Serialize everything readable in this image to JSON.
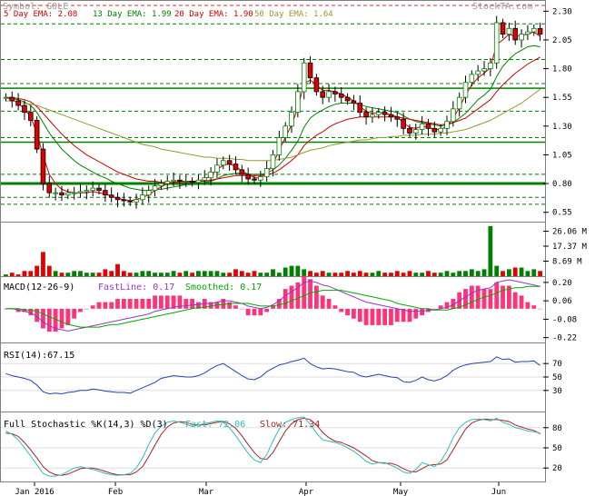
{
  "header": {
    "symbol": "Symbol: GOLE",
    "brand": "StockTA.com",
    "ema5": "5 Day EMA: 2.08",
    "ema13": "13 Day EMA: 1.99",
    "ema20": "20 Day EMA: 1.90",
    "ema50": "50 Day EMA: 1.64"
  },
  "colors": {
    "background": "#ffffff",
    "grid": "#808080",
    "support_line": "#008000",
    "up_candle": "#008000",
    "down_candle": "#e00000",
    "ema5": "#cc0000",
    "ema13": "#008000",
    "ema20": "#cc0000",
    "ema50": "#999933",
    "macd_fast": "#9933cc",
    "macd_slow": "#00aa00",
    "macd_hist": "#ff3377",
    "rsi_line": "#2244aa",
    "stoch_k": "#33bbbb",
    "stoch_d": "#aa2222"
  },
  "chart_data": [
    {
      "id": "price",
      "type": "candlestick",
      "ylim": [
        0.5,
        2.35
      ],
      "yticks": [
        "2.30",
        "2.05",
        "1.80",
        "1.55",
        "1.30",
        "1.05",
        "0.80",
        "0.55"
      ],
      "x": [
        "Jan 2016",
        "Feb",
        "Mar",
        "Apr",
        "May",
        "Jun"
      ],
      "closes": [
        1.55,
        1.52,
        1.48,
        1.42,
        1.35,
        1.1,
        0.8,
        0.72,
        0.72,
        0.7,
        0.72,
        0.72,
        0.73,
        0.74,
        0.76,
        0.74,
        0.7,
        0.68,
        0.66,
        0.65,
        0.64,
        0.66,
        0.7,
        0.74,
        0.78,
        0.8,
        0.82,
        0.83,
        0.82,
        0.82,
        0.81,
        0.83,
        0.85,
        0.9,
        0.96,
        1,
        0.97,
        0.92,
        0.88,
        0.84,
        0.83,
        0.86,
        0.93,
        1.05,
        1.2,
        1.3,
        1.42,
        1.6,
        1.85,
        1.72,
        1.6,
        1.55,
        1.6,
        1.58,
        1.55,
        1.52,
        1.5,
        1.42,
        1.38,
        1.4,
        1.42,
        1.4,
        1.38,
        1.36,
        1.28,
        1.24,
        1.27,
        1.32,
        1.28,
        1.25,
        1.28,
        1.34,
        1.45,
        1.55,
        1.68,
        1.75,
        1.78,
        1.8,
        1.85,
        2.2,
        2.1,
        2.15,
        2.05,
        2.1,
        2.12,
        2.15,
        2.1
      ],
      "support_levels": [
        0.8,
        1.16,
        1.63
      ],
      "resistance_levels": [
        0.62,
        0.68,
        0.88,
        1.2,
        1.43,
        1.67,
        1.88,
        2.19,
        2.35
      ],
      "ema": [
        {
          "values": [
            1.55,
            1.53,
            1.5,
            1.45,
            1.38,
            1.24,
            1.04,
            0.88,
            0.8,
            0.75,
            0.73,
            0.72,
            0.72,
            0.72,
            0.73,
            0.72,
            0.71,
            0.69,
            0.67,
            0.66,
            0.65,
            0.66,
            0.68,
            0.7,
            0.74,
            0.77,
            0.8,
            0.81,
            0.82,
            0.82,
            0.82,
            0.82,
            0.84,
            0.87,
            0.92,
            0.96,
            0.97,
            0.95,
            0.91,
            0.88,
            0.85,
            0.85,
            0.89,
            0.97,
            1.09,
            1.2,
            1.31,
            1.46,
            1.67,
            1.7,
            1.66,
            1.61,
            1.61,
            1.6,
            1.58,
            1.55,
            1.52,
            1.47,
            1.43,
            1.41,
            1.42,
            1.41,
            1.4,
            1.38,
            1.33,
            1.29,
            1.28,
            1.3,
            1.29,
            1.27,
            1.27,
            1.3,
            1.37,
            1.46,
            1.57,
            1.66,
            1.72,
            1.76,
            1.81,
            2.01,
            2.05,
            2.1,
            2.08,
            2.09,
            2.1,
            2.12,
            2.08
          ]
        },
        {
          "values": [
            1.55,
            1.54,
            1.53,
            1.51,
            1.48,
            1.42,
            1.33,
            1.24,
            1.17,
            1.1,
            1.05,
            1.0,
            0.96,
            0.93,
            0.9,
            0.87,
            0.85,
            0.82,
            0.8,
            0.78,
            0.76,
            0.75,
            0.74,
            0.74,
            0.75,
            0.75,
            0.76,
            0.77,
            0.78,
            0.79,
            0.79,
            0.8,
            0.81,
            0.82,
            0.84,
            0.87,
            0.88,
            0.89,
            0.89,
            0.88,
            0.88,
            0.88,
            0.89,
            0.92,
            0.96,
            1.02,
            1.09,
            1.17,
            1.29,
            1.37,
            1.41,
            1.44,
            1.47,
            1.49,
            1.5,
            1.5,
            1.5,
            1.49,
            1.47,
            1.46,
            1.45,
            1.44,
            1.43,
            1.42,
            1.39,
            1.36,
            1.34,
            1.33,
            1.32,
            1.31,
            1.3,
            1.31,
            1.33,
            1.37,
            1.41,
            1.47,
            1.53,
            1.57,
            1.62,
            1.73,
            1.82,
            1.88,
            1.93,
            1.96,
            1.99,
            2.0,
            1.99
          ]
        },
        {
          "values": [
            1.55,
            1.55,
            1.54,
            1.53,
            1.51,
            1.47,
            1.41,
            1.35,
            1.29,
            1.23,
            1.18,
            1.13,
            1.09,
            1.05,
            1.02,
            0.99,
            0.96,
            0.93,
            0.9,
            0.88,
            0.86,
            0.84,
            0.83,
            0.82,
            0.82,
            0.81,
            0.81,
            0.81,
            0.81,
            0.81,
            0.81,
            0.82,
            0.82,
            0.83,
            0.84,
            0.85,
            0.86,
            0.87,
            0.87,
            0.87,
            0.87,
            0.87,
            0.88,
            0.89,
            0.92,
            0.96,
            1.0,
            1.05,
            1.13,
            1.18,
            1.22,
            1.25,
            1.29,
            1.32,
            1.34,
            1.36,
            1.37,
            1.38,
            1.38,
            1.38,
            1.38,
            1.38,
            1.38,
            1.38,
            1.37,
            1.36,
            1.35,
            1.34,
            1.33,
            1.32,
            1.31,
            1.32,
            1.33,
            1.35,
            1.37,
            1.41,
            1.45,
            1.49,
            1.53,
            1.6,
            1.66,
            1.71,
            1.76,
            1.8,
            1.84,
            1.87,
            1.9
          ]
        },
        {
          "values": [
            1.52,
            1.52,
            1.51,
            1.5,
            1.49,
            1.48,
            1.46,
            1.44,
            1.42,
            1.4,
            1.38,
            1.36,
            1.34,
            1.32,
            1.3,
            1.28,
            1.26,
            1.24,
            1.22,
            1.2,
            1.18,
            1.16,
            1.14,
            1.13,
            1.12,
            1.1,
            1.09,
            1.08,
            1.07,
            1.06,
            1.05,
            1.04,
            1.03,
            1.03,
            1.02,
            1.02,
            1.02,
            1.01,
            1.01,
            1.0,
            1.0,
            1.0,
            1.0,
            1.0,
            1.01,
            1.02,
            1.03,
            1.05,
            1.07,
            1.09,
            1.1,
            1.11,
            1.13,
            1.14,
            1.15,
            1.16,
            1.17,
            1.18,
            1.18,
            1.19,
            1.2,
            1.2,
            1.21,
            1.21,
            1.22,
            1.22,
            1.22,
            1.23,
            1.23,
            1.23,
            1.24,
            1.24,
            1.25,
            1.26,
            1.27,
            1.29,
            1.31,
            1.33,
            1.35,
            1.38,
            1.41,
            1.44,
            1.47,
            1.5,
            1.54,
            1.58,
            1.62
          ]
        }
      ]
    },
    {
      "id": "volume",
      "type": "bar",
      "ylim": [
        0,
        30
      ],
      "yticks": [
        "26.06 M",
        "17.37 M",
        "8.69 M"
      ],
      "values": [
        1,
        2,
        1,
        3,
        3,
        6,
        14,
        6,
        3,
        2,
        2,
        3,
        3,
        2,
        2,
        2,
        4,
        3,
        7,
        3,
        2,
        2,
        3,
        3,
        2,
        2,
        2,
        3,
        2,
        3,
        2,
        3,
        3,
        3,
        3,
        2,
        2,
        4,
        3,
        2,
        3,
        2,
        2,
        4,
        2,
        5,
        6,
        6,
        4,
        3,
        2,
        3,
        2,
        2,
        2,
        3,
        2,
        3,
        2,
        2,
        3,
        2,
        2,
        3,
        2,
        3,
        2,
        2,
        3,
        2,
        2,
        3,
        2,
        3,
        3,
        4,
        3,
        4,
        29,
        6,
        3,
        4,
        5,
        5,
        3,
        4,
        3
      ]
    },
    {
      "id": "macd",
      "type": "line",
      "title": "MACD(12-26-9)",
      "fast_label": "FastLine: 0.17",
      "slow_label": "Smoothed: 0.17",
      "ylim": [
        -0.25,
        0.22
      ],
      "yticks": [
        "0.20",
        "0.06",
        "-0.08",
        "-0.22"
      ],
      "fast": [
        0.0,
        0.0,
        -0.01,
        -0.02,
        -0.03,
        -0.06,
        -0.1,
        -0.13,
        -0.15,
        -0.16,
        -0.17,
        -0.16,
        -0.15,
        -0.14,
        -0.13,
        -0.12,
        -0.11,
        -0.1,
        -0.09,
        -0.08,
        -0.07,
        -0.06,
        -0.05,
        -0.04,
        -0.02,
        -0.01,
        0.0,
        0.01,
        0.02,
        0.02,
        0.03,
        0.03,
        0.04,
        0.04,
        0.05,
        0.06,
        0.06,
        0.05,
        0.04,
        0.02,
        0.01,
        0.0,
        0.01,
        0.03,
        0.06,
        0.1,
        0.13,
        0.16,
        0.2,
        0.21,
        0.2,
        0.18,
        0.17,
        0.15,
        0.13,
        0.11,
        0.09,
        0.07,
        0.05,
        0.04,
        0.03,
        0.02,
        0.01,
        0.0,
        -0.01,
        -0.02,
        -0.02,
        -0.02,
        -0.01,
        -0.01,
        0.0,
        0.01,
        0.03,
        0.06,
        0.09,
        0.12,
        0.14,
        0.15,
        0.16,
        0.2,
        0.21,
        0.22,
        0.21,
        0.2,
        0.19,
        0.18,
        0.17
      ],
      "slow": [
        0.0,
        0.0,
        0.0,
        -0.01,
        -0.01,
        -0.02,
        -0.04,
        -0.06,
        -0.08,
        -0.1,
        -0.12,
        -0.13,
        -0.14,
        -0.14,
        -0.14,
        -0.14,
        -0.13,
        -0.12,
        -0.12,
        -0.11,
        -0.1,
        -0.09,
        -0.08,
        -0.07,
        -0.06,
        -0.05,
        -0.04,
        -0.03,
        -0.02,
        -0.01,
        0.0,
        0.01,
        0.01,
        0.02,
        0.03,
        0.03,
        0.04,
        0.04,
        0.04,
        0.04,
        0.03,
        0.02,
        0.02,
        0.02,
        0.03,
        0.04,
        0.06,
        0.08,
        0.1,
        0.12,
        0.13,
        0.14,
        0.14,
        0.14,
        0.14,
        0.13,
        0.12,
        0.11,
        0.1,
        0.09,
        0.08,
        0.07,
        0.06,
        0.04,
        0.03,
        0.02,
        0.01,
        0.0,
        0.0,
        -0.01,
        -0.01,
        -0.01,
        0.0,
        0.01,
        0.03,
        0.05,
        0.07,
        0.09,
        0.1,
        0.12,
        0.14,
        0.15,
        0.16,
        0.16,
        0.17,
        0.17,
        0.17
      ]
    },
    {
      "id": "rsi",
      "type": "line",
      "title": "RSI(14):67.15",
      "ylim": [
        0,
        100
      ],
      "yticks": [
        "70",
        "50",
        "30"
      ],
      "values": [
        55,
        52,
        50,
        48,
        45,
        38,
        28,
        25,
        26,
        25,
        27,
        28,
        30,
        30,
        32,
        31,
        29,
        28,
        27,
        27,
        26,
        30,
        34,
        38,
        42,
        48,
        50,
        52,
        51,
        50,
        50,
        52,
        56,
        62,
        67,
        70,
        64,
        58,
        52,
        47,
        46,
        50,
        58,
        63,
        68,
        70,
        73,
        75,
        78,
        70,
        65,
        62,
        63,
        62,
        60,
        58,
        57,
        52,
        50,
        52,
        54,
        52,
        50,
        49,
        43,
        42,
        45,
        50,
        46,
        44,
        47,
        52,
        60,
        65,
        68,
        70,
        71,
        72,
        73,
        80,
        76,
        77,
        72,
        73,
        73,
        74,
        67
      ]
    },
    {
      "id": "stochastic",
      "type": "line",
      "title": "Full Stochastic %K(14,3) %D(3)",
      "fast_label": "Fast: 72.06",
      "slow_label": "Slow: 71.34",
      "ylim": [
        0,
        100
      ],
      "yticks": [
        "80",
        "50",
        "20"
      ],
      "k": [
        75,
        70,
        62,
        50,
        38,
        25,
        12,
        8,
        8,
        10,
        15,
        20,
        22,
        20,
        18,
        15,
        12,
        10,
        9,
        10,
        12,
        20,
        35,
        55,
        72,
        82,
        88,
        90,
        88,
        85,
        82,
        84,
        86,
        88,
        90,
        88,
        80,
        68,
        55,
        42,
        32,
        28,
        40,
        60,
        78,
        88,
        92,
        95,
        96,
        85,
        72,
        62,
        60,
        58,
        55,
        50,
        45,
        38,
        30,
        26,
        28,
        28,
        24,
        20,
        14,
        12,
        18,
        28,
        25,
        22,
        30,
        45,
        65,
        80,
        88,
        92,
        93,
        92,
        90,
        94,
        88,
        85,
        80,
        78,
        75,
        74,
        72
      ],
      "d": [
        72,
        71,
        67,
        58,
        47,
        35,
        22,
        14,
        10,
        9,
        11,
        15,
        19,
        20,
        20,
        18,
        15,
        12,
        10,
        10,
        10,
        14,
        22,
        37,
        54,
        70,
        81,
        87,
        89,
        88,
        85,
        84,
        84,
        86,
        88,
        89,
        86,
        79,
        68,
        55,
        43,
        34,
        33,
        43,
        59,
        75,
        86,
        92,
        94,
        92,
        84,
        73,
        65,
        60,
        58,
        54,
        50,
        44,
        38,
        31,
        28,
        27,
        27,
        24,
        19,
        15,
        14,
        19,
        24,
        25,
        26,
        32,
        47,
        63,
        78,
        87,
        91,
        93,
        92,
        92,
        91,
        89,
        84,
        81,
        78,
        76,
        71
      ]
    }
  ]
}
